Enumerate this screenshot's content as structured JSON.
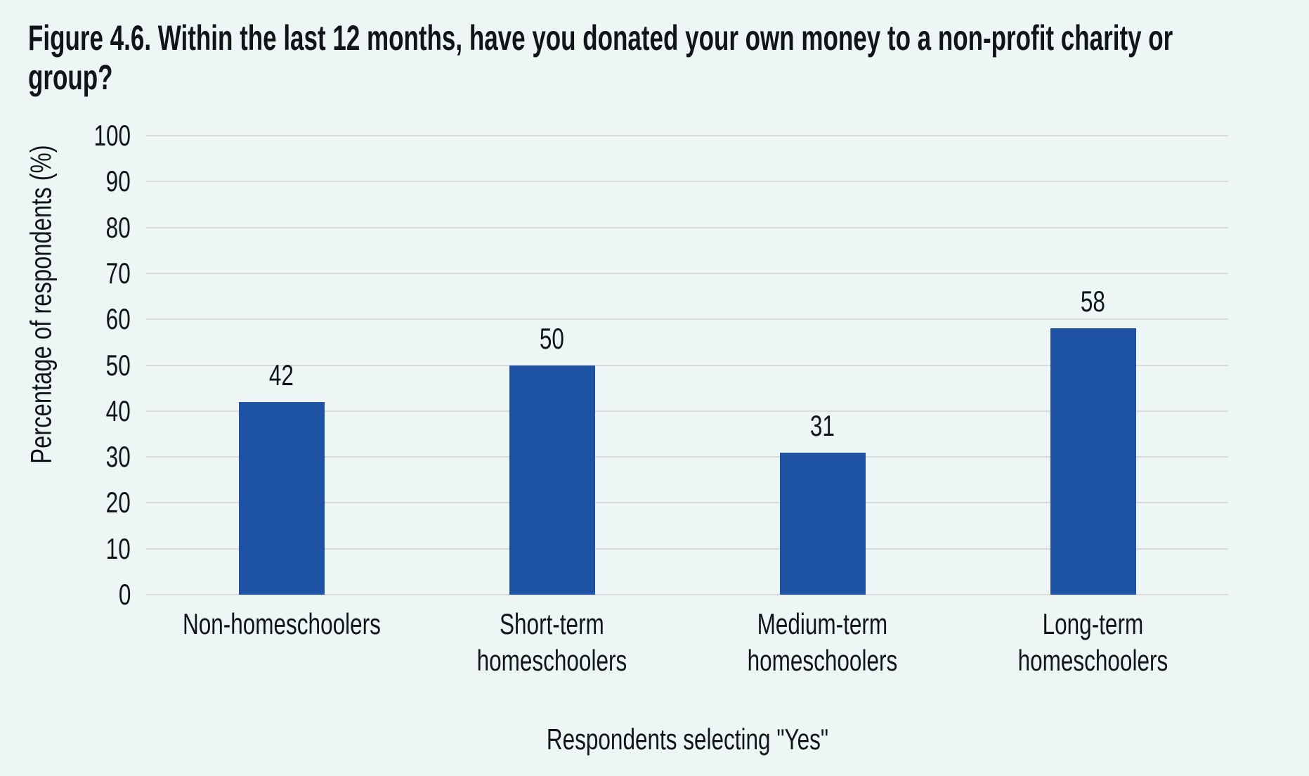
{
  "header": {
    "title_display": "Figure 4.6. Within the last 12 months, have you donated your own money to a non-profit charity or\ngroup?"
  },
  "chart_data": {
    "type": "bar",
    "title": "Figure 4.6. Within the last 12 months, have you donated your own money to a non-profit charity or group?",
    "categories": [
      "Non-homeschoolers",
      "Short-term homeschoolers",
      "Medium-term homeschoolers",
      "Long-term homeschoolers"
    ],
    "categories_display": [
      "Non-homeschoolers",
      "Short-term\nhomeschoolers",
      "Medium-term\nhomeschoolers",
      "Long-term\nhomeschoolers"
    ],
    "values": [
      42,
      50,
      31,
      58
    ],
    "bar_value_labels": [
      "42",
      "50",
      "31",
      "58"
    ],
    "xlabel": "Respondents selecting \"Yes\"",
    "ylabel": "Percentage of respondents (%)",
    "ylim": [
      0,
      100
    ],
    "yticks": [
      0,
      10,
      20,
      30,
      40,
      50,
      60,
      70,
      80,
      90,
      100
    ],
    "grid": true,
    "legend": false,
    "colors": {
      "bar": "#1e53a4",
      "background": "#edf6f4",
      "gridline": "#d8dadc",
      "text": "#10151a"
    }
  }
}
